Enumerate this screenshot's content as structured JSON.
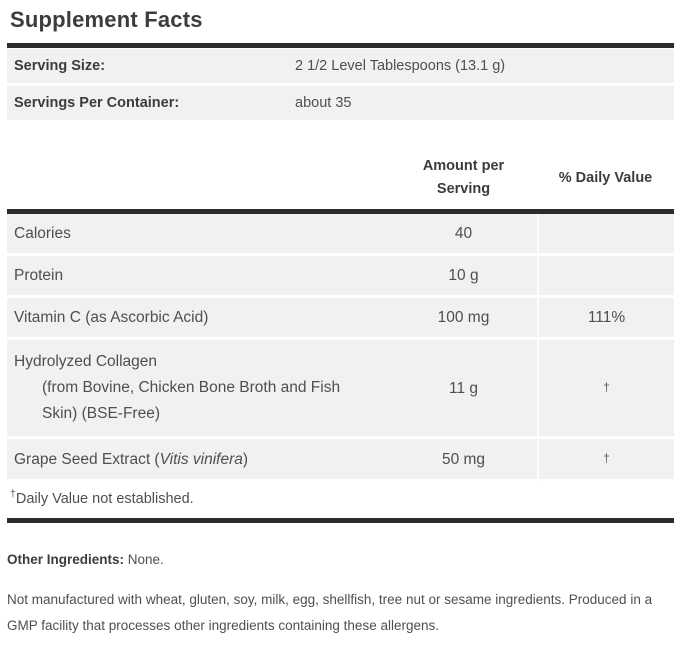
{
  "title": "Supplement Facts",
  "serving_info": {
    "rows": [
      {
        "label": "Serving Size:",
        "value": "2 1/2 Level Tablespoons (13.1 g)"
      },
      {
        "label": "Servings Per Container:",
        "value": "about 35"
      }
    ]
  },
  "nutrition_table": {
    "amount_header": "Amount per Serving",
    "daily_value_header": "% Daily Value",
    "rows": [
      {
        "name": "Calories",
        "amount": "40",
        "daily_value": ""
      },
      {
        "name": "Protein",
        "amount": "10 g",
        "daily_value": ""
      },
      {
        "name": "Vitamin C (as Ascorbic Acid)",
        "amount": "100 mg",
        "daily_value": "111%"
      },
      {
        "name": "Hydrolyzed Collagen",
        "name_detail_line1": "(from Bovine, Chicken Bone Broth and Fish",
        "name_detail_line2": "Skin) (BSE-Free)",
        "amount": "11 g",
        "daily_value": "†"
      },
      {
        "name_prefix": "Grape Seed Extract (",
        "name_species": "Vitis vinifera",
        "name_suffix": ")",
        "amount": "50 mg",
        "daily_value": "†"
      }
    ]
  },
  "footnote": {
    "marker": "†",
    "text": "Daily Value not established."
  },
  "other_ingredients": {
    "label": "Other Ingredients:",
    "value": "None."
  },
  "allergen_statement": "Not manufactured with wheat, gluten, soy, milk, egg, shellfish, tree nut or sesame ingredients. Produced in a GMP facility that processes other ingredients containing these allergens.",
  "colors": {
    "divider_bar": "#2d2d2d",
    "row_background": "#f1f1f1",
    "daily_value_background": "#f5f5f5",
    "text_primary": "#3c3c3c",
    "text_secondary": "#4f4f4f"
  }
}
